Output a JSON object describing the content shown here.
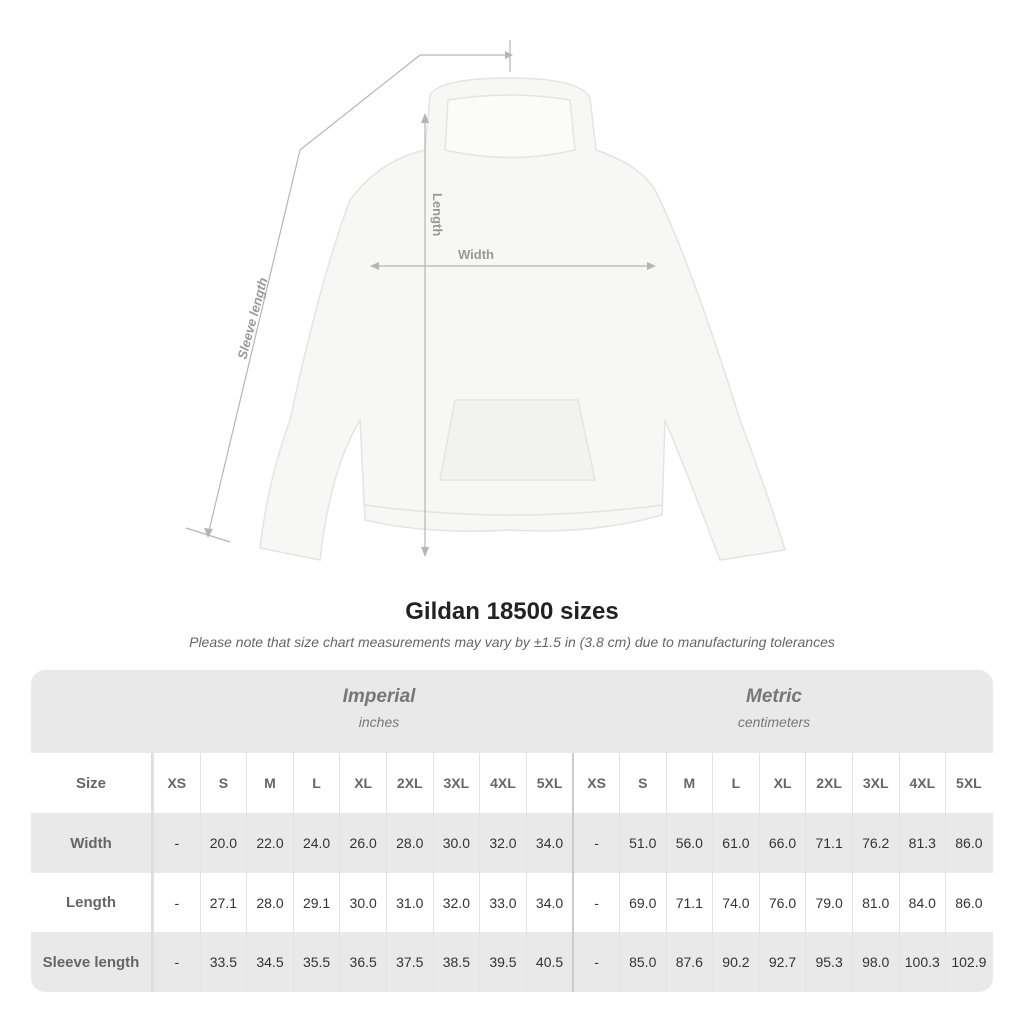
{
  "diagram": {
    "labels": {
      "sleeve": "Sleeve length",
      "length": "Length",
      "width": "Width"
    },
    "garment_color": "#f7f7f5",
    "line_color": "#999999"
  },
  "title": "Gildan 18500 sizes",
  "note": "Please note that size chart measurements may vary by ±1.5 in (3.8 cm) due to manufacturing tolerances",
  "table": {
    "imperial": {
      "heading": "Imperial",
      "unit": "inches"
    },
    "metric": {
      "heading": "Metric",
      "unit": "centimeters"
    },
    "size_label": "Size",
    "sizes": [
      "XS",
      "S",
      "M",
      "L",
      "XL",
      "2XL",
      "3XL",
      "4XL",
      "5XL"
    ],
    "rows": [
      {
        "label": "Width",
        "imperial": [
          "-",
          "20.0",
          "22.0",
          "24.0",
          "26.0",
          "28.0",
          "30.0",
          "32.0",
          "34.0"
        ],
        "metric": [
          "-",
          "51.0",
          "56.0",
          "61.0",
          "66.0",
          "71.1",
          "76.2",
          "81.3",
          "86.0"
        ]
      },
      {
        "label": "Length",
        "imperial": [
          "-",
          "27.1",
          "28.0",
          "29.1",
          "30.0",
          "31.0",
          "32.0",
          "33.0",
          "34.0"
        ],
        "metric": [
          "-",
          "69.0",
          "71.1",
          "74.0",
          "76.0",
          "79.0",
          "81.0",
          "84.0",
          "86.0"
        ]
      },
      {
        "label": "Sleeve length",
        "imperial": [
          "-",
          "33.5",
          "34.5",
          "35.5",
          "36.5",
          "37.5",
          "38.5",
          "39.5",
          "40.5"
        ],
        "metric": [
          "-",
          "85.0",
          "87.6",
          "90.2",
          "92.7",
          "95.3",
          "98.0",
          "100.3",
          "102.9"
        ]
      }
    ]
  }
}
